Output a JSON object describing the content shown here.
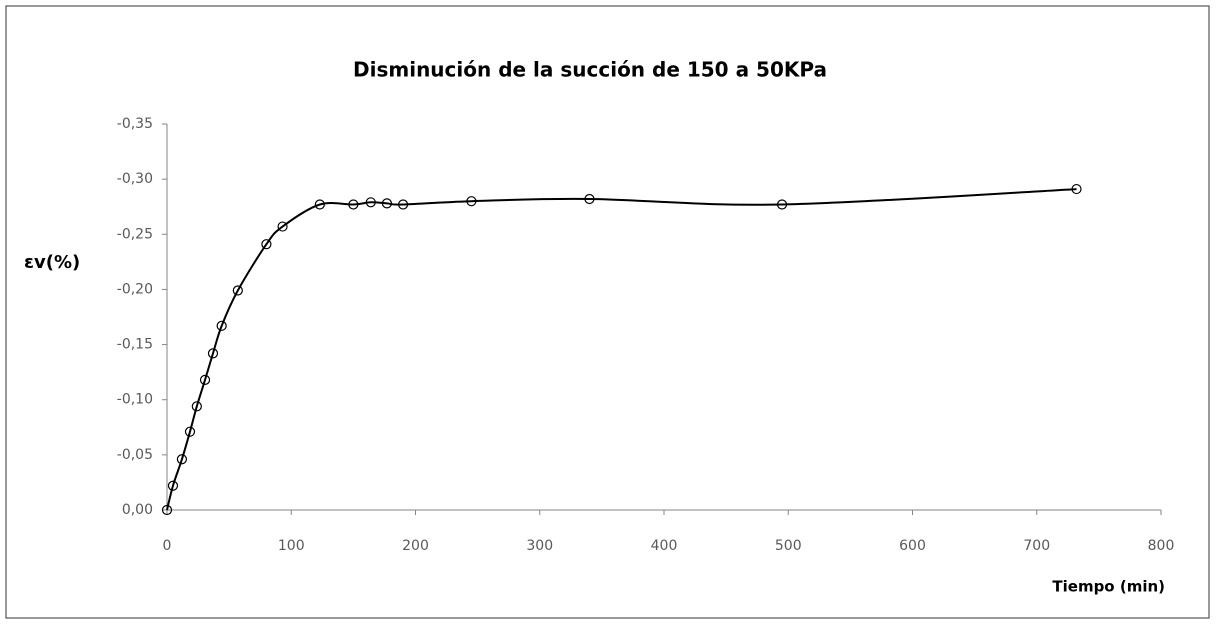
{
  "chart_data": {
    "type": "scatter",
    "title": "Disminución de la succión de 150 a 50KPa",
    "xlabel": "Tiempo (min)",
    "ylabel": "εv(%)",
    "x": [
      0,
      4.8,
      12,
      18.5,
      24,
      30.6,
      37,
      44,
      57,
      80,
      93,
      123,
      150,
      164,
      177,
      190,
      245,
      340,
      495,
      732
    ],
    "series": [
      {
        "color": "#000000",
        "values": [
          0,
          -0.022,
          -0.046,
          -0.071,
          -0.094,
          -0.118,
          -0.142,
          -0.167,
          -0.199,
          -0.241,
          -0.257,
          -0.277,
          -0.277,
          -0.279,
          -0.278,
          -0.277,
          -0.28,
          -0.282,
          -0.277,
          -0.291
        ]
      }
    ],
    "xlim": [
      0,
      800
    ],
    "xticks": [
      0,
      100,
      200,
      300,
      400,
      500,
      600,
      700,
      800
    ],
    "ylim": [
      0,
      -0.35
    ],
    "yticks": [
      {
        "value": 0,
        "label": "0,00"
      },
      {
        "value": -0.05,
        "label": "-0,05"
      },
      {
        "value": -0.1,
        "label": "-0,10"
      },
      {
        "value": -0.15,
        "label": "-0,15"
      },
      {
        "value": -0.2,
        "label": "-0,20"
      },
      {
        "value": -0.25,
        "label": "-0,25"
      },
      {
        "value": -0.3,
        "label": "-0,30"
      },
      {
        "value": -0.35,
        "label": "-0,35"
      }
    ],
    "smooth": true,
    "grid": false
  }
}
